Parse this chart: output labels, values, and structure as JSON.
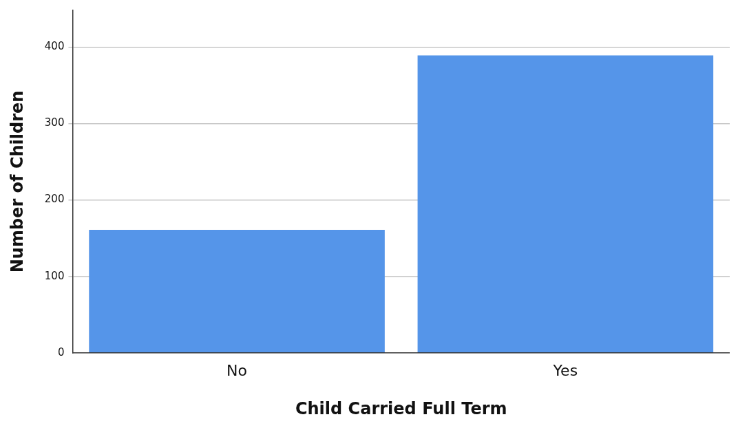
{
  "chart_data": {
    "type": "bar",
    "xlabel": "Child Carried Full Term",
    "ylabel": "Number of Children",
    "categories": [
      "No",
      "Yes"
    ],
    "values": [
      161,
      389
    ],
    "color": "#5595e9",
    "ylim": [
      0,
      448
    ],
    "yticks": [
      0,
      100,
      200,
      300,
      400
    ],
    "grid": "y",
    "legend": false
  }
}
